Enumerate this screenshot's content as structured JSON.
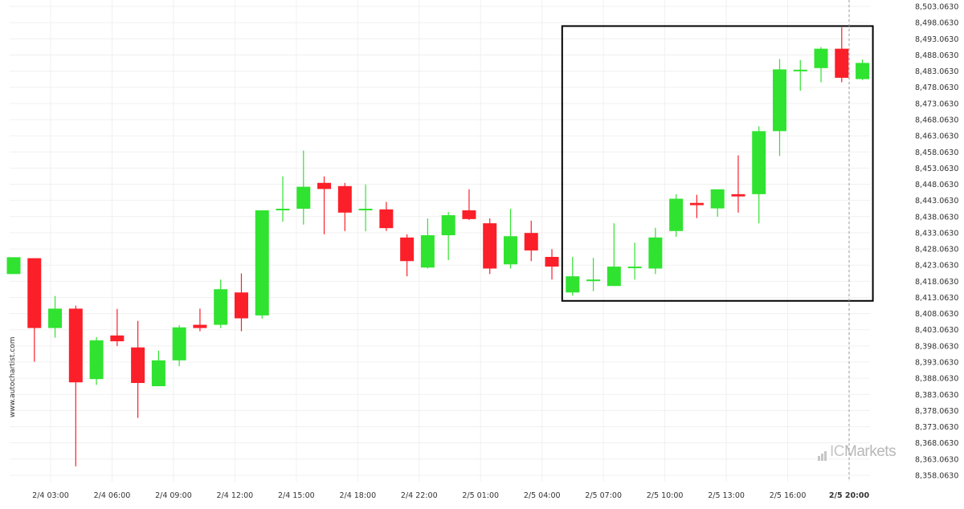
{
  "watermark": "www.autochartist.com",
  "brand": {
    "ic": "IC",
    "markets": "Markets"
  },
  "colors": {
    "up": "#30e330",
    "down": "#fb1f29",
    "grid": "#f0f0f0",
    "box": "#000000",
    "text": "#333333",
    "now_line": "#9a9a9a"
  },
  "chart_data": {
    "type": "candlestick",
    "x_ticks": [
      "2/4 03:00",
      "2/4 06:00",
      "2/4 09:00",
      "2/4 12:00",
      "2/4 15:00",
      "2/4 18:00",
      "2/4 22:00",
      "2/5 01:00",
      "2/5 04:00",
      "2/5 07:00",
      "2/5 10:00",
      "2/5 13:00",
      "2/5 16:00",
      "2/5 20:00"
    ],
    "y_ticks": [
      "8,503.0630",
      "8,498.0630",
      "8,493.0630",
      "8,488.0630",
      "8,483.0630",
      "8,478.0630",
      "8,473.0630",
      "8,468.0630",
      "8,463.0630",
      "8,458.0630",
      "8,453.0630",
      "8,448.0630",
      "8,443.0630",
      "8,438.0630",
      "8,433.0630",
      "8,428.0630",
      "8,423.0630",
      "8,418.0630",
      "8,413.0630",
      "8,408.0630",
      "8,403.0630",
      "8,398.0630",
      "8,393.0630",
      "8,388.0630",
      "8,383.0630",
      "8,378.0630",
      "8,373.0630",
      "8,368.0630",
      "8,363.0630",
      "8,358.0630"
    ],
    "ylim": [
      8356.063,
      8505.063
    ],
    "candles": [
      {
        "o": 8420.3,
        "h": 8425.5,
        "l": 8420.3,
        "c": 8425.5
      },
      {
        "o": 8425.2,
        "h": 8425.2,
        "l": 8393.2,
        "c": 8403.6
      },
      {
        "o": 8403.6,
        "h": 8413.5,
        "l": 8400.6,
        "c": 8409.6
      },
      {
        "o": 8409.6,
        "h": 8410.5,
        "l": 8360.8,
        "c": 8386.8
      },
      {
        "o": 8387.8,
        "h": 8400.8,
        "l": 8386.0,
        "c": 8399.8
      },
      {
        "o": 8401.3,
        "h": 8409.5,
        "l": 8398.0,
        "c": 8399.5
      },
      {
        "o": 8397.6,
        "h": 8405.8,
        "l": 8375.8,
        "c": 8386.6
      },
      {
        "o": 8385.6,
        "h": 8396.6,
        "l": 8385.6,
        "c": 8393.6
      },
      {
        "o": 8393.6,
        "h": 8404.5,
        "l": 8391.8,
        "c": 8403.8
      },
      {
        "o": 8404.6,
        "h": 8409.6,
        "l": 8402.6,
        "c": 8403.6
      },
      {
        "o": 8404.6,
        "h": 8418.6,
        "l": 8403.6,
        "c": 8415.6
      },
      {
        "o": 8414.6,
        "h": 8420.5,
        "l": 8402.6,
        "c": 8406.6
      },
      {
        "o": 8407.5,
        "h": 8440.0,
        "l": 8406.5,
        "c": 8440.0
      },
      {
        "o": 8440.5,
        "h": 8450.5,
        "l": 8436.5,
        "c": 8440.5
      },
      {
        "o": 8440.5,
        "h": 8458.5,
        "l": 8435.6,
        "c": 8447.3
      },
      {
        "o": 8448.5,
        "h": 8450.5,
        "l": 8432.6,
        "c": 8446.6
      },
      {
        "o": 8447.5,
        "h": 8448.5,
        "l": 8433.6,
        "c": 8439.3
      },
      {
        "o": 8440.5,
        "h": 8448.0,
        "l": 8433.5,
        "c": 8440.5
      },
      {
        "o": 8440.3,
        "h": 8442.6,
        "l": 8433.6,
        "c": 8434.5
      },
      {
        "o": 8431.6,
        "h": 8432.6,
        "l": 8419.6,
        "c": 8424.3
      },
      {
        "o": 8422.3,
        "h": 8437.5,
        "l": 8422.0,
        "c": 8432.3
      },
      {
        "o": 8432.3,
        "h": 8439.5,
        "l": 8424.6,
        "c": 8438.5
      },
      {
        "o": 8440.0,
        "h": 8446.5,
        "l": 8437.0,
        "c": 8437.3
      },
      {
        "o": 8436.0,
        "h": 8437.5,
        "l": 8420.3,
        "c": 8422.0
      },
      {
        "o": 8423.3,
        "h": 8440.5,
        "l": 8422.0,
        "c": 8432.0
      },
      {
        "o": 8433.0,
        "h": 8436.8,
        "l": 8424.3,
        "c": 8427.6
      },
      {
        "o": 8425.6,
        "h": 8428.0,
        "l": 8418.6,
        "c": 8422.6
      },
      {
        "o": 8414.6,
        "h": 8425.6,
        "l": 8413.6,
        "c": 8419.6
      },
      {
        "o": 8418.6,
        "h": 8425.3,
        "l": 8415.0,
        "c": 8418.6
      },
      {
        "o": 8416.6,
        "h": 8436.0,
        "l": 8416.6,
        "c": 8422.6
      },
      {
        "o": 8422.6,
        "h": 8430.0,
        "l": 8418.6,
        "c": 8422.6
      },
      {
        "o": 8422.0,
        "h": 8434.6,
        "l": 8420.3,
        "c": 8431.6
      },
      {
        "o": 8433.6,
        "h": 8445.0,
        "l": 8431.8,
        "c": 8443.6
      },
      {
        "o": 8442.3,
        "h": 8444.8,
        "l": 8437.6,
        "c": 8441.6
      },
      {
        "o": 8440.6,
        "h": 8446.5,
        "l": 8438.0,
        "c": 8446.5
      },
      {
        "o": 8445.0,
        "h": 8457.0,
        "l": 8439.3,
        "c": 8444.3
      },
      {
        "o": 8445.0,
        "h": 8466.0,
        "l": 8436.0,
        "c": 8464.5
      },
      {
        "o": 8464.5,
        "h": 8486.8,
        "l": 8456.8,
        "c": 8483.6
      },
      {
        "o": 8483.5,
        "h": 8486.5,
        "l": 8477.0,
        "c": 8483.5
      },
      {
        "o": 8484.0,
        "h": 8490.5,
        "l": 8479.6,
        "c": 8490.0
      },
      {
        "o": 8490.0,
        "h": 8496.6,
        "l": 8479.6,
        "c": 8481.0
      },
      {
        "o": 8480.6,
        "h": 8486.6,
        "l": 8480.3,
        "c": 8485.6
      }
    ],
    "highlight": {
      "start_index": 27,
      "end_index": 41,
      "y_top": 8497.0,
      "y_bottom": 8412.0
    },
    "grid": true
  }
}
